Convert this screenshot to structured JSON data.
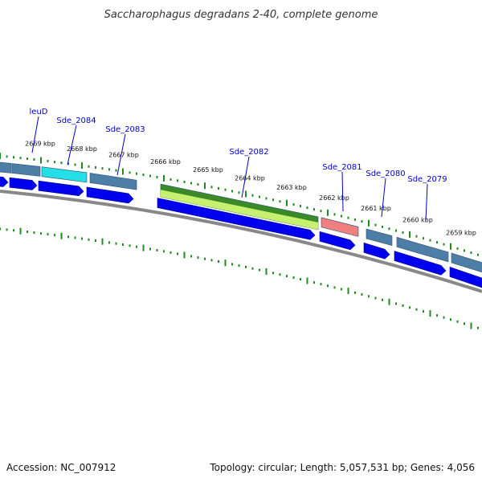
{
  "title": "Saccharophagus degradans 2-40, complete genome",
  "footer": {
    "accession": "Accession: NC_007912",
    "summary": "Topology: circular; Length: 5,057,531 bp; Genes: 4,056"
  },
  "colors": {
    "gene_arrow": "#0000ee",
    "cds_default": "#4d7ea8",
    "cds_highlight_cyan": "#22e0e6",
    "cds_green": "#3a8a28",
    "cds_lightgreen": "#c8f070",
    "cds_salmon": "#f08080",
    "backbone": "#888888",
    "tick": "#1f8a1f",
    "label": "#0000cc"
  },
  "gene_labels": [
    "leuD",
    "Sde_2084",
    "Sde_2083",
    "Sde_2082",
    "Sde_2081",
    "Sde_2080",
    "Sde_2079"
  ],
  "kbp_ticks": [
    "2669 kbp",
    "2668 kbp",
    "2667 kbp",
    "2666 kbp",
    "2665 kbp",
    "2664 kbp",
    "2663 kbp",
    "2662 kbp",
    "2661 kbp",
    "2660 kbp",
    "2659 kbp"
  ]
}
